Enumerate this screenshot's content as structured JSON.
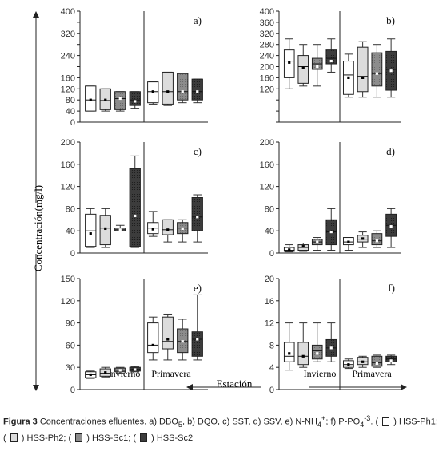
{
  "figure": {
    "ylabel": "Concentración(mg/l)",
    "xlabel": "Estación",
    "season_labels": [
      "Invierno",
      "Primavera"
    ]
  },
  "legend": [
    {
      "name": "HSS-Ph1",
      "color": "#ffffff"
    },
    {
      "name": "HSS-Ph2",
      "color": "#dcdcdc"
    },
    {
      "name": "HSS-Sc1",
      "color": "#8c8c8c"
    },
    {
      "name": "HSS-Sc2",
      "color": "#3c3c3c"
    }
  ],
  "caption": {
    "lead": "Figura 3",
    "text_1": " Concentraciones efluentes. a) DBO",
    "sub_1": "5",
    "text_2": ", b) DQO, c) SST, d) SSV, e) N-NH",
    "sub_2": "4",
    "sup_2": "+",
    "text_3": "; f) P-PO",
    "sub_3": "4",
    "sup_3": "-3",
    "text_4": ". ( ",
    "l1": " ) HSS-Ph1;",
    "text_5": "( ",
    "l2": " ) HSS-Ph2; ( ",
    "l3": " ) HSS-Sc1; ( ",
    "l4": " ) HSS-Sc2"
  },
  "chart_data": [
    {
      "type": "box",
      "panel": "a)",
      "categories": [
        "Invierno",
        "Primavera"
      ],
      "yticks": [
        0,
        40,
        80,
        120,
        160,
        200,
        240,
        280,
        320,
        360,
        400
      ],
      "yticklabels": [
        "0",
        "40",
        "80",
        "120",
        "160",
        "",
        "240",
        "",
        "320",
        "",
        "400"
      ],
      "ylim": [
        0,
        400
      ],
      "series": [
        {
          "name": "HSS-Ph1",
          "boxes": [
            {
              "min": 40,
              "q1": 40,
              "median": 80,
              "q3": 130,
              "max": 130,
              "mean": 80
            },
            {
              "min": 65,
              "q1": 70,
              "median": 110,
              "q3": 145,
              "max": 145,
              "mean": 110
            }
          ]
        },
        {
          "name": "HSS-Ph2",
          "boxes": [
            {
              "min": 40,
              "q1": 45,
              "median": 78,
              "q3": 120,
              "max": 120,
              "mean": 80
            },
            {
              "min": 60,
              "q1": 65,
              "median": 110,
              "q3": 180,
              "max": 180,
              "mean": 110
            }
          ]
        },
        {
          "name": "HSS-Sc1",
          "boxes": [
            {
              "min": 40,
              "q1": 45,
              "median": 85,
              "q3": 110,
              "max": 110,
              "mean": 85
            },
            {
              "min": 70,
              "q1": 80,
              "median": 110,
              "q3": 175,
              "max": 175,
              "mean": 110
            }
          ]
        },
        {
          "name": "HSS-Sc2",
          "boxes": [
            {
              "min": 50,
              "q1": 60,
              "median": 80,
              "q3": 110,
              "max": 110,
              "mean": 75
            },
            {
              "min": 70,
              "q1": 80,
              "median": 110,
              "q3": 155,
              "max": 155,
              "mean": 110
            }
          ]
        }
      ]
    },
    {
      "type": "box",
      "panel": "b)",
      "categories": [
        "Invierno",
        "Primavera"
      ],
      "yticks": [
        0,
        40,
        80,
        120,
        160,
        200,
        240,
        280,
        320,
        360,
        400
      ],
      "yticklabels": [
        "",
        "",
        "",
        "120",
        "160",
        "200",
        "240",
        "280",
        "320",
        "360",
        "400"
      ],
      "ylim": [
        0,
        400
      ],
      "series": [
        {
          "name": "HSS-Ph1",
          "boxes": [
            {
              "min": 120,
              "q1": 160,
              "median": 220,
              "q3": 260,
              "max": 300,
              "mean": 215
            },
            {
              "min": 90,
              "q1": 100,
              "median": 170,
              "q3": 220,
              "max": 245,
              "mean": 160
            }
          ]
        },
        {
          "name": "HSS-Ph2",
          "boxes": [
            {
              "min": 130,
              "q1": 140,
              "median": 200,
              "q3": 240,
              "max": 280,
              "mean": 195
            },
            {
              "min": 90,
              "q1": 110,
              "median": 165,
              "q3": 270,
              "max": 290,
              "mean": 160
            }
          ]
        },
        {
          "name": "HSS-Sc1",
          "boxes": [
            {
              "min": 130,
              "q1": 190,
              "median": 210,
              "q3": 230,
              "max": 280,
              "mean": 200
            },
            {
              "min": 90,
              "q1": 130,
              "median": 175,
              "q3": 250,
              "max": 280,
              "mean": 175
            }
          ]
        },
        {
          "name": "HSS-Sc2",
          "boxes": [
            {
              "min": 180,
              "q1": 210,
              "median": 230,
              "q3": 260,
              "max": 300,
              "mean": 220
            },
            {
              "min": 90,
              "q1": 115,
              "median": 190,
              "q3": 255,
              "max": 300,
              "mean": 185
            }
          ]
        }
      ]
    },
    {
      "type": "box",
      "panel": "c)",
      "categories": [
        "Invierno",
        "Primavera"
      ],
      "yticks": [
        0,
        40,
        80,
        120,
        160,
        200
      ],
      "yticklabels": [
        "0",
        "40",
        "80",
        "120",
        "160",
        "200"
      ],
      "ylim": [
        0,
        200
      ],
      "series": [
        {
          "name": "HSS-Ph1",
          "boxes": [
            {
              "min": 10,
              "q1": 12,
              "median": 40,
              "q3": 70,
              "max": 80,
              "mean": 35
            },
            {
              "min": 30,
              "q1": 35,
              "median": 45,
              "q3": 55,
              "max": 75,
              "mean": 43
            }
          ]
        },
        {
          "name": "HSS-Ph2",
          "boxes": [
            {
              "min": 10,
              "q1": 15,
              "median": 45,
              "q3": 68,
              "max": 80,
              "mean": 44
            },
            {
              "min": 20,
              "q1": 33,
              "median": 42,
              "q3": 60,
              "max": 60,
              "mean": 42
            }
          ]
        },
        {
          "name": "HSS-Sc1",
          "boxes": [
            {
              "min": 40,
              "q1": 40,
              "median": 42,
              "q3": 45,
              "max": 50,
              "mean": 42
            },
            {
              "min": 20,
              "q1": 35,
              "median": 45,
              "q3": 55,
              "max": 60,
              "mean": 44
            }
          ]
        },
        {
          "name": "HSS-Sc2",
          "boxes": [
            {
              "min": 10,
              "q1": 12,
              "median": 25,
              "q3": 152,
              "max": 175,
              "mean": 67
            },
            {
              "min": 20,
              "q1": 40,
              "median": 65,
              "q3": 100,
              "max": 105,
              "mean": 65
            }
          ]
        }
      ]
    },
    {
      "type": "box",
      "panel": "d)",
      "categories": [
        "Invierno",
        "Primavera"
      ],
      "yticks": [
        0,
        40,
        80,
        120,
        160,
        200
      ],
      "yticklabels": [
        "0",
        "40",
        "80",
        "120",
        "160",
        "200"
      ],
      "ylim": [
        0,
        200
      ],
      "series": [
        {
          "name": "HSS-Ph1",
          "boxes": [
            {
              "min": 2,
              "q1": 3,
              "median": 5,
              "q3": 10,
              "max": 15,
              "mean": 6
            },
            {
              "min": 5,
              "q1": 15,
              "median": 20,
              "q3": 28,
              "max": 28,
              "mean": 20
            }
          ]
        },
        {
          "name": "HSS-Ph2",
          "boxes": [
            {
              "min": 3,
              "q1": 5,
              "median": 10,
              "q3": 15,
              "max": 18,
              "mean": 12
            },
            {
              "min": 10,
              "q1": 20,
              "median": 25,
              "q3": 32,
              "max": 38,
              "mean": 26
            }
          ]
        },
        {
          "name": "HSS-Sc1",
          "boxes": [
            {
              "min": 5,
              "q1": 15,
              "median": 20,
              "q3": 25,
              "max": 28,
              "mean": 20
            },
            {
              "min": 10,
              "q1": 15,
              "median": 22,
              "q3": 35,
              "max": 40,
              "mean": 22
            }
          ]
        },
        {
          "name": "HSS-Sc2",
          "boxes": [
            {
              "min": 5,
              "q1": 15,
              "median": 38,
              "q3": 60,
              "max": 80,
              "mean": 38
            },
            {
              "min": 10,
              "q1": 30,
              "median": 50,
              "q3": 70,
              "max": 80,
              "mean": 48
            }
          ]
        }
      ]
    },
    {
      "type": "box",
      "panel": "e)",
      "categories": [
        "Invierno",
        "Primavera"
      ],
      "yticks": [
        0,
        30,
        60,
        90,
        120,
        150
      ],
      "yticklabels": [
        "0",
        "30",
        "60",
        "90",
        "120",
        "150"
      ],
      "ylim": [
        0,
        150
      ],
      "series": [
        {
          "name": "HSS-Ph1",
          "boxes": [
            {
              "min": 15,
              "q1": 16,
              "median": 20,
              "q3": 24,
              "max": 25,
              "mean": 20
            },
            {
              "min": 40,
              "q1": 50,
              "median": 60,
              "q3": 90,
              "max": 98,
              "mean": 60
            }
          ]
        },
        {
          "name": "HSS-Ph2",
          "boxes": [
            {
              "min": 17,
              "q1": 18,
              "median": 22,
              "q3": 28,
              "max": 30,
              "mean": 23
            },
            {
              "min": 40,
              "q1": 55,
              "median": 65,
              "q3": 98,
              "max": 102,
              "mean": 68
            }
          ]
        },
        {
          "name": "HSS-Sc1",
          "boxes": [
            {
              "min": 22,
              "q1": 24,
              "median": 26,
              "q3": 29,
              "max": 30,
              "mean": 26
            },
            {
              "min": 40,
              "q1": 50,
              "median": 65,
              "q3": 82,
              "max": 95,
              "mean": 65
            }
          ]
        },
        {
          "name": "HSS-Sc2",
          "boxes": [
            {
              "min": 24,
              "q1": 25,
              "median": 27,
              "q3": 30,
              "max": 31,
              "mean": 27
            },
            {
              "min": 40,
              "q1": 45,
              "median": 68,
              "q3": 78,
              "max": 128,
              "mean": 68
            }
          ]
        }
      ]
    },
    {
      "type": "box",
      "panel": "f)",
      "categories": [
        "Invierno",
        "Primavera"
      ],
      "yticks": [
        0,
        4,
        8,
        12,
        16,
        20
      ],
      "yticklabels": [
        "0",
        "4",
        "8",
        "12",
        "16",
        "20"
      ],
      "ylim": [
        0,
        20
      ],
      "series": [
        {
          "name": "HSS-Ph1",
          "boxes": [
            {
              "min": 3.5,
              "q1": 5,
              "median": 6,
              "q3": 8.5,
              "max": 12,
              "mean": 6.5
            },
            {
              "min": 3.8,
              "q1": 4,
              "median": 4.5,
              "q3": 5.2,
              "max": 5.5,
              "mean": 4.5
            }
          ]
        },
        {
          "name": "HSS-Ph2",
          "boxes": [
            {
              "min": 4,
              "q1": 4.5,
              "median": 6,
              "q3": 8.5,
              "max": 12,
              "mean": 6
            },
            {
              "min": 4,
              "q1": 4.5,
              "median": 5,
              "q3": 5.8,
              "max": 6,
              "mean": 5
            }
          ]
        },
        {
          "name": "HSS-Sc1",
          "boxes": [
            {
              "min": 5,
              "q1": 5.5,
              "median": 7,
              "q3": 8,
              "max": 12,
              "mean": 6.5
            },
            {
              "min": 4,
              "q1": 4.2,
              "median": 4.8,
              "q3": 6,
              "max": 6.2,
              "mean": 4.7
            }
          ]
        },
        {
          "name": "HSS-Sc2",
          "boxes": [
            {
              "min": 5,
              "q1": 6,
              "median": 7.5,
              "q3": 9,
              "max": 12,
              "mean": 7.5
            },
            {
              "min": 4.5,
              "q1": 5,
              "median": 5.5,
              "q3": 6,
              "max": 6.2,
              "mean": 5.2
            }
          ]
        }
      ]
    }
  ]
}
